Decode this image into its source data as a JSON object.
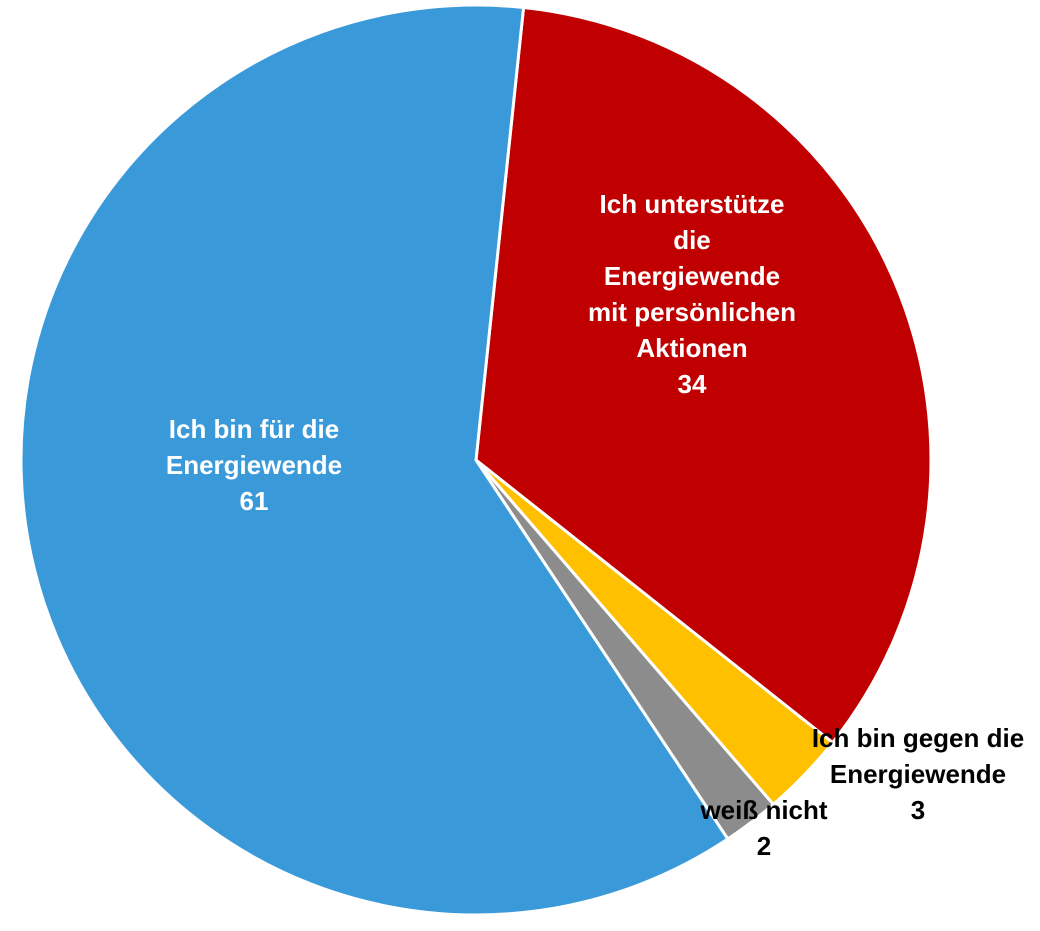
{
  "chart_data": {
    "type": "pie",
    "start_angle_deg": 6,
    "direction": "clockwise",
    "slices": [
      {
        "label": [
          "Ich unterstütze",
          "die",
          "Energiewende",
          "mit persönlichen",
          "Aktionen"
        ],
        "value_label": "34",
        "value": 34,
        "color": "#c00000",
        "label_color": "#ffffff",
        "label_position": "inside"
      },
      {
        "label": [
          "Ich bin gegen die",
          "Energiewende"
        ],
        "value_label": "3",
        "value": 3,
        "color": "#ffc000",
        "label_color": "#000000",
        "label_position": "outside"
      },
      {
        "label": [
          "weiß nicht"
        ],
        "value_label": "2",
        "value": 2,
        "color": "#8c8c8c",
        "label_color": "#000000",
        "label_position": "outside"
      },
      {
        "label": [
          "Ich bin für die",
          "Energiewende"
        ],
        "value_label": "61",
        "value": 61,
        "color": "#3a9ad9",
        "label_color": "#ffffff",
        "label_position": "inside"
      }
    ]
  }
}
